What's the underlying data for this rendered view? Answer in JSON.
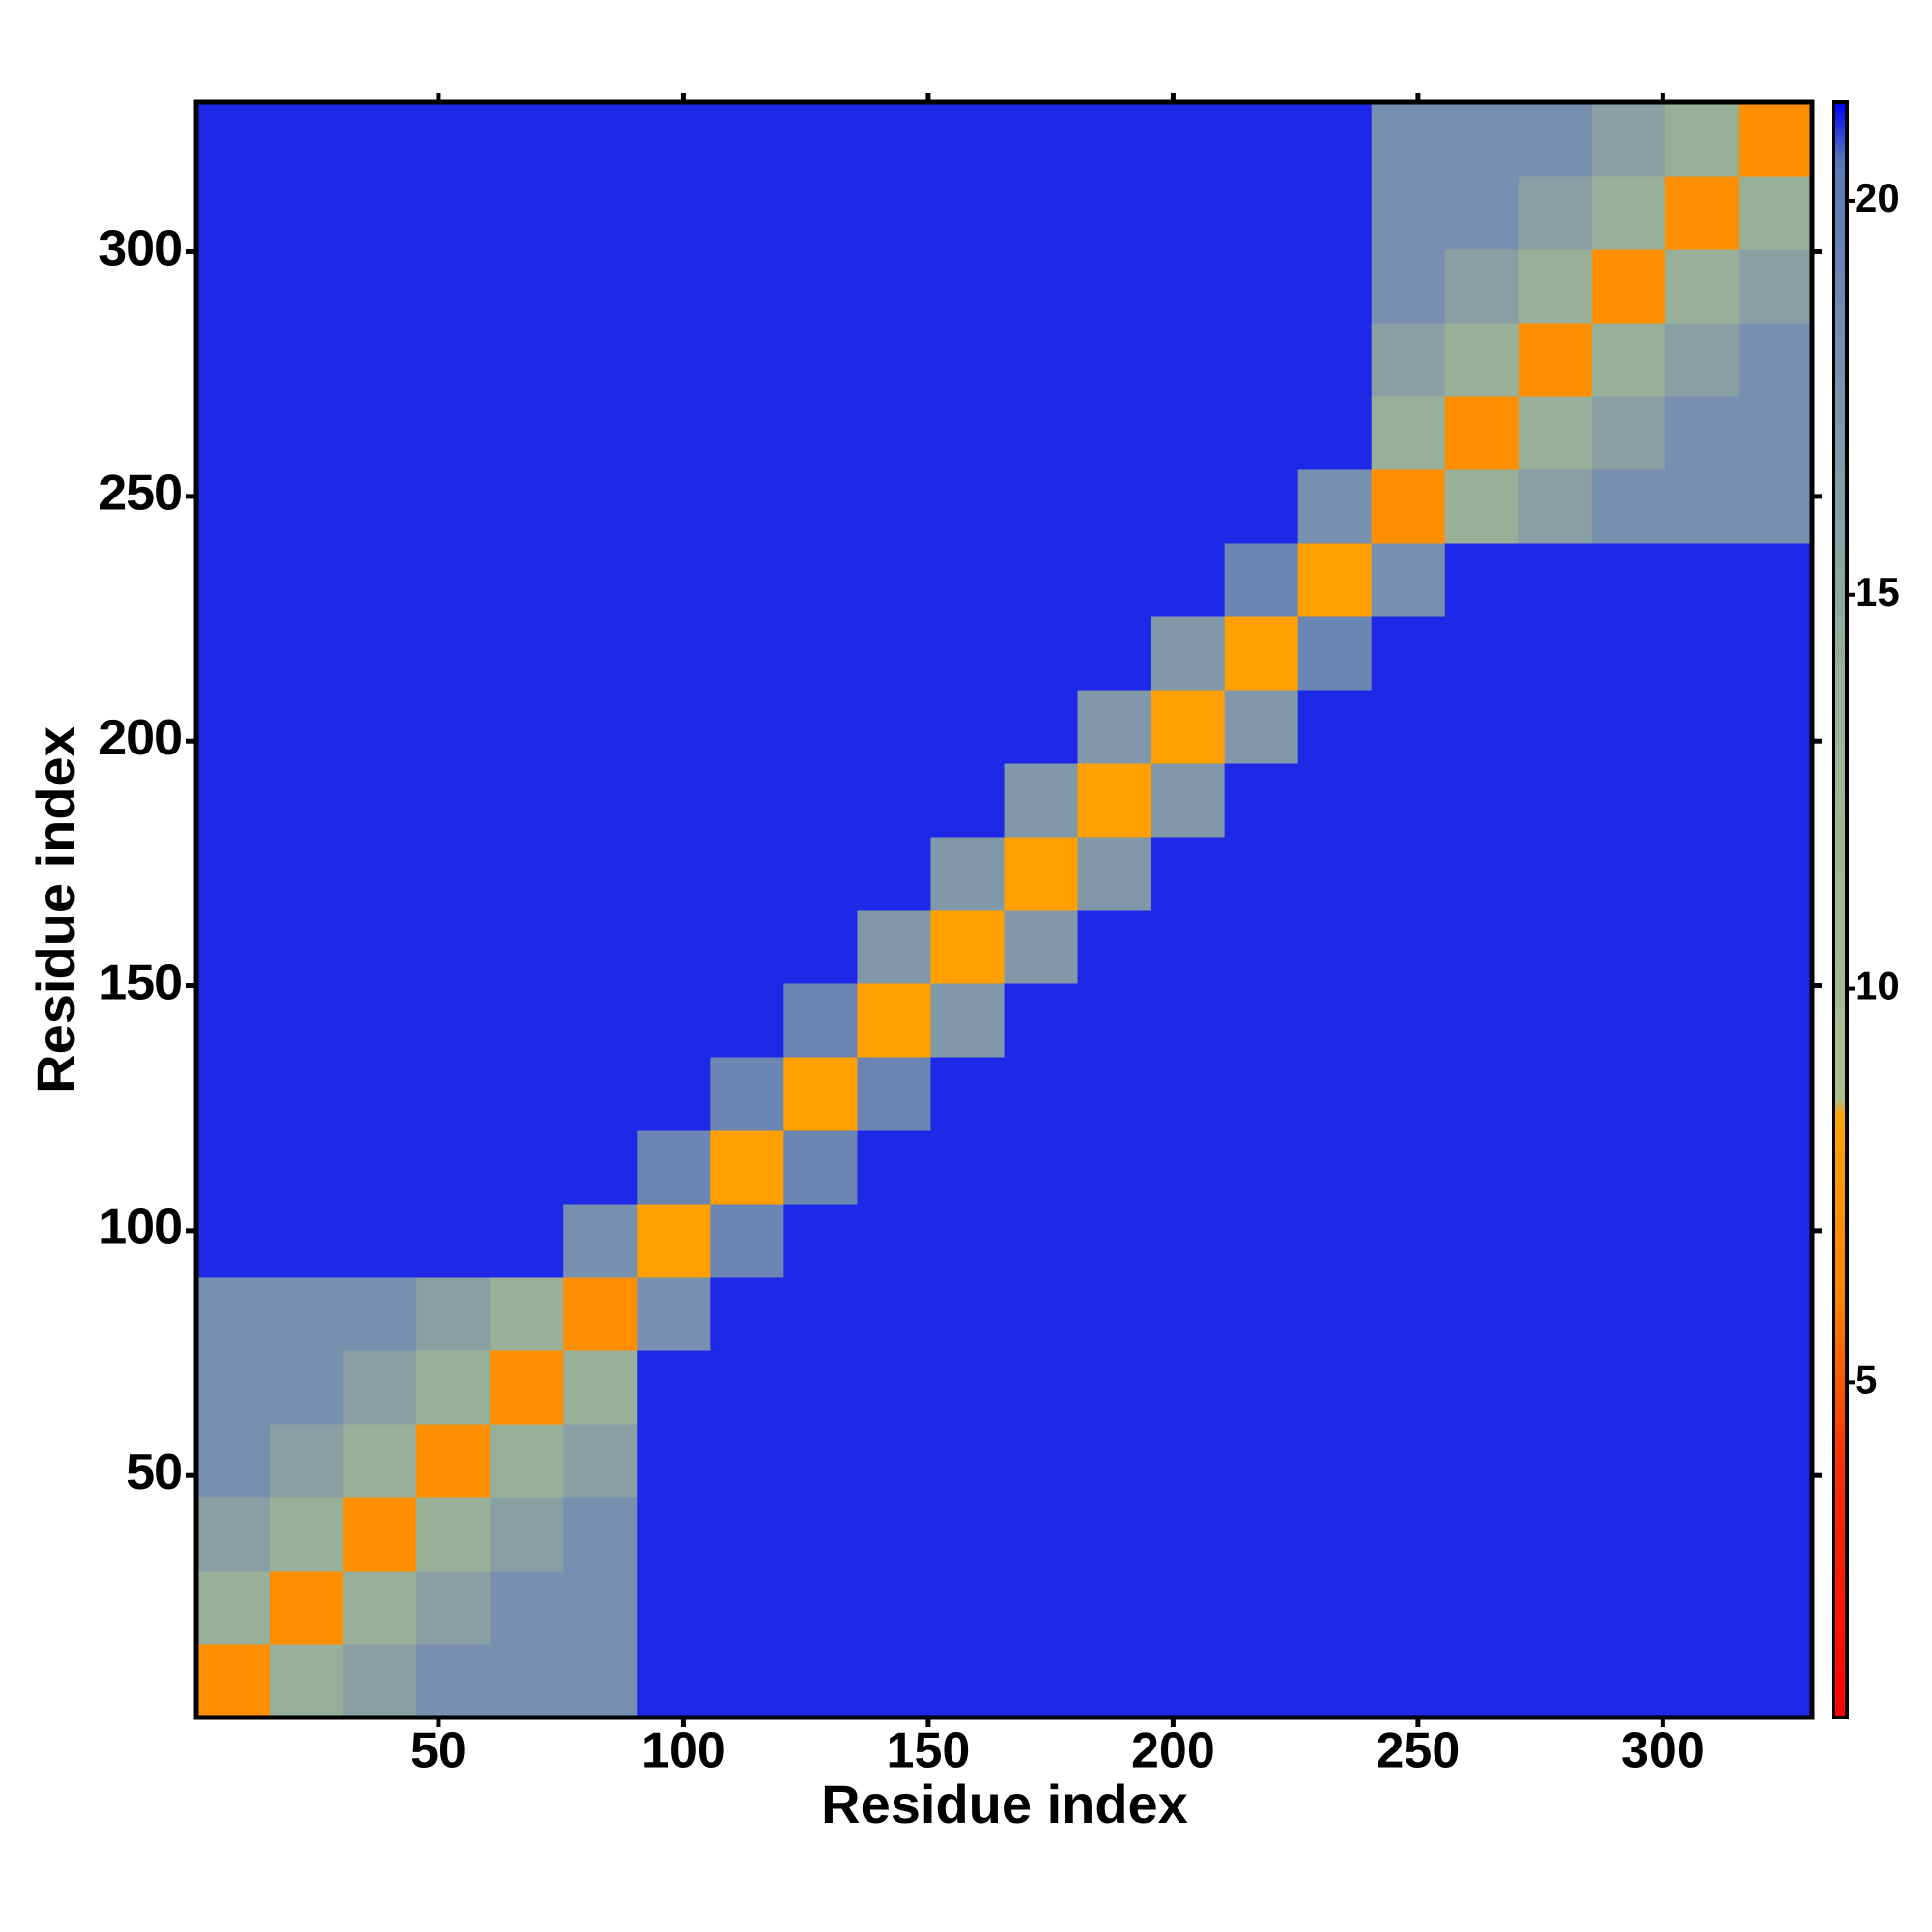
{
  "chart_data": {
    "type": "heatmap",
    "xlabel": "Residue index",
    "ylabel": "Residue index",
    "bins": [
      0.5,
      15.5,
      30.5,
      45.5,
      60.5,
      75.5,
      90.5,
      105.5,
      120.5,
      135.5,
      150.5,
      165.5,
      180.5,
      195.5,
      210.5,
      225.5,
      240.5,
      255.5,
      270.5,
      285.5,
      300.5,
      315.5,
      330.5
    ],
    "z": [
      [
        7,
        14,
        16,
        18,
        18,
        18,
        21,
        21,
        21,
        21,
        21,
        21,
        21,
        21,
        21,
        21,
        21,
        21,
        21,
        21,
        21,
        21
      ],
      [
        14,
        7,
        14,
        16,
        18,
        18,
        21,
        21,
        21,
        21,
        21,
        21,
        21,
        21,
        21,
        21,
        21,
        21,
        21,
        21,
        21,
        21
      ],
      [
        16,
        14,
        7,
        14,
        16,
        18,
        21,
        21,
        21,
        21,
        21,
        21,
        21,
        21,
        21,
        21,
        21,
        21,
        21,
        21,
        21,
        21
      ],
      [
        18,
        16,
        14,
        7,
        14,
        16,
        21,
        21,
        21,
        21,
        21,
        21,
        21,
        21,
        21,
        21,
        21,
        21,
        21,
        21,
        21,
        21
      ],
      [
        18,
        18,
        16,
        14,
        7,
        14,
        21,
        21,
        21,
        21,
        21,
        21,
        21,
        21,
        21,
        21,
        21,
        21,
        21,
        21,
        21,
        21
      ],
      [
        18,
        18,
        18,
        16,
        14,
        7,
        18,
        21,
        21,
        21,
        21,
        21,
        21,
        21,
        21,
        21,
        21,
        21,
        21,
        21,
        21,
        21
      ],
      [
        21,
        21,
        21,
        21,
        21,
        18,
        8,
        19,
        21,
        21,
        21,
        21,
        21,
        21,
        21,
        21,
        21,
        21,
        21,
        21,
        21,
        21
      ],
      [
        21,
        21,
        21,
        21,
        21,
        21,
        19,
        8,
        19,
        21,
        21,
        21,
        21,
        21,
        21,
        21,
        21,
        21,
        21,
        21,
        21,
        21
      ],
      [
        21,
        21,
        21,
        21,
        21,
        21,
        21,
        19,
        8,
        19,
        21,
        21,
        21,
        21,
        21,
        21,
        21,
        21,
        21,
        21,
        21,
        21
      ],
      [
        21,
        21,
        21,
        21,
        21,
        21,
        21,
        21,
        19,
        8,
        17,
        21,
        21,
        21,
        21,
        21,
        21,
        21,
        21,
        21,
        21,
        21
      ],
      [
        21,
        21,
        21,
        21,
        21,
        21,
        21,
        21,
        21,
        17,
        8,
        17,
        21,
        21,
        21,
        21,
        21,
        21,
        21,
        21,
        21,
        21
      ],
      [
        21,
        21,
        21,
        21,
        21,
        21,
        21,
        21,
        21,
        21,
        17,
        8,
        17,
        21,
        21,
        21,
        21,
        21,
        21,
        21,
        21,
        21
      ],
      [
        21,
        21,
        21,
        21,
        21,
        21,
        21,
        21,
        21,
        21,
        21,
        17,
        8,
        17,
        21,
        21,
        21,
        21,
        21,
        21,
        21,
        21
      ],
      [
        21,
        21,
        21,
        21,
        21,
        21,
        21,
        21,
        21,
        21,
        21,
        21,
        17,
        8,
        17,
        21,
        21,
        21,
        21,
        21,
        21,
        21
      ],
      [
        21,
        21,
        21,
        21,
        21,
        21,
        21,
        21,
        21,
        21,
        21,
        21,
        21,
        17,
        8,
        19,
        21,
        21,
        21,
        21,
        21,
        21
      ],
      [
        21,
        21,
        21,
        21,
        21,
        21,
        21,
        21,
        21,
        21,
        21,
        21,
        21,
        21,
        19,
        8,
        18,
        21,
        21,
        21,
        21,
        21
      ],
      [
        21,
        21,
        21,
        21,
        21,
        21,
        21,
        21,
        21,
        21,
        21,
        21,
        21,
        21,
        21,
        18,
        7,
        14,
        16,
        18,
        18,
        18
      ],
      [
        21,
        21,
        21,
        21,
        21,
        21,
        21,
        21,
        21,
        21,
        21,
        21,
        21,
        21,
        21,
        21,
        14,
        7,
        14,
        16,
        18,
        18
      ],
      [
        21,
        21,
        21,
        21,
        21,
        21,
        21,
        21,
        21,
        21,
        21,
        21,
        21,
        21,
        21,
        21,
        16,
        14,
        7,
        14,
        16,
        18
      ],
      [
        21,
        21,
        21,
        21,
        21,
        21,
        21,
        21,
        21,
        21,
        21,
        21,
        21,
        21,
        21,
        21,
        18,
        16,
        14,
        7,
        14,
        16
      ],
      [
        21,
        21,
        21,
        21,
        21,
        21,
        21,
        21,
        21,
        21,
        21,
        21,
        21,
        21,
        21,
        21,
        18,
        18,
        16,
        14,
        7,
        14
      ],
      [
        21,
        21,
        21,
        21,
        21,
        21,
        21,
        21,
        21,
        21,
        21,
        21,
        21,
        21,
        21,
        21,
        18,
        18,
        18,
        16,
        14,
        7
      ]
    ],
    "xlim": [
      0.5,
      330.5
    ],
    "ylim": [
      0.5,
      330.5
    ],
    "xticks": [
      50,
      100,
      150,
      200,
      250,
      300
    ],
    "yticks": [
      50,
      100,
      150,
      200,
      250,
      300
    ],
    "colorbar": {
      "lim": [
        0.75,
        21.25
      ],
      "ticks": [
        5,
        10,
        15,
        20
      ]
    },
    "colorscale": [
      [
        0.75,
        "#ff0000"
      ],
      [
        4,
        "#ff3000"
      ],
      [
        6,
        "#ff8000"
      ],
      [
        8.4,
        "#ffa500"
      ],
      [
        8.6,
        "#a8c090"
      ],
      [
        14,
        "#98b098"
      ],
      [
        18,
        "#7890b0"
      ],
      [
        20.5,
        "#5a78b8"
      ],
      [
        21.25,
        "#0000ff"
      ]
    ]
  }
}
